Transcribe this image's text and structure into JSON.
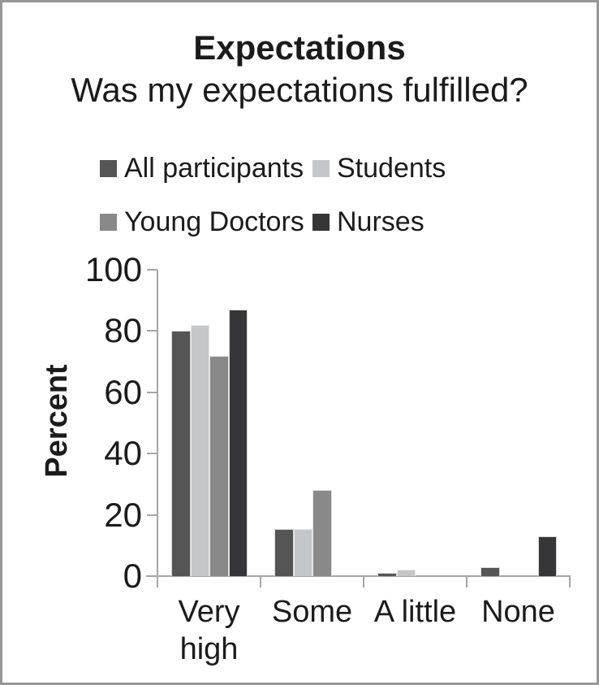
{
  "chart_data": {
    "type": "bar",
    "title": "Expectations",
    "subtitle": "Was my expectations fulfilled?",
    "ylabel": "Percent",
    "ylim": [
      0,
      100
    ],
    "ytick_step": 20,
    "grid": false,
    "legend_position": "top-left, two rows",
    "categories": [
      "Very high",
      "Some",
      "A little",
      "None"
    ],
    "series": [
      {
        "name": "All participants",
        "color": "#555555",
        "values": [
          80,
          15.5,
          1,
          3
        ]
      },
      {
        "name": "Students",
        "color": "#c5c6c8",
        "values": [
          82,
          15.5,
          2,
          0
        ]
      },
      {
        "name": "Young Doctors",
        "color": "#898989",
        "values": [
          72,
          28,
          0,
          0
        ]
      },
      {
        "name": "Nurses",
        "color": "#363638",
        "values": [
          87,
          0,
          0,
          13
        ]
      }
    ],
    "colors": {
      "axis": "#a6a6a6",
      "text": "#1b1b1b",
      "frame_border": "#979797"
    }
  }
}
